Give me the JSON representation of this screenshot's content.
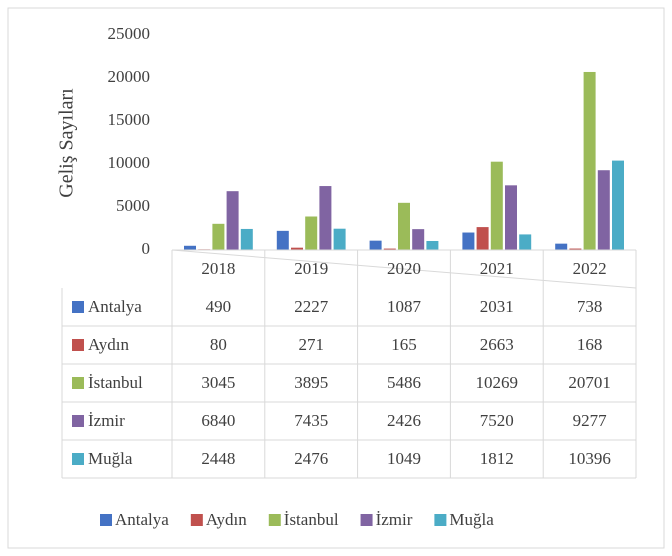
{
  "chart_data": {
    "type": "bar",
    "y_label": "Geliş Sayıları",
    "categories": [
      "2018",
      "2019",
      "2020",
      "2021",
      "2022"
    ],
    "series": [
      {
        "name": "Antalya",
        "color": "#4472c4",
        "values": [
          490,
          2227,
          1087,
          2031,
          738
        ]
      },
      {
        "name": "Aydın",
        "color": "#c0504d",
        "values": [
          80,
          271,
          165,
          2663,
          168
        ]
      },
      {
        "name": "İstanbul",
        "color": "#9bbb59",
        "values": [
          3045,
          3895,
          5486,
          10269,
          20701
        ]
      },
      {
        "name": "İzmir",
        "color": "#8064a2",
        "values": [
          6840,
          7435,
          2426,
          7520,
          9277
        ]
      },
      {
        "name": "Muğla",
        "color": "#4bacc6",
        "values": [
          2448,
          2476,
          1049,
          1812,
          10396
        ]
      }
    ],
    "ylim": [
      0,
      25000
    ],
    "yticks": [
      0,
      5000,
      10000,
      15000,
      20000,
      25000
    ],
    "grid": false,
    "legend": "bottom",
    "data_table": true
  }
}
